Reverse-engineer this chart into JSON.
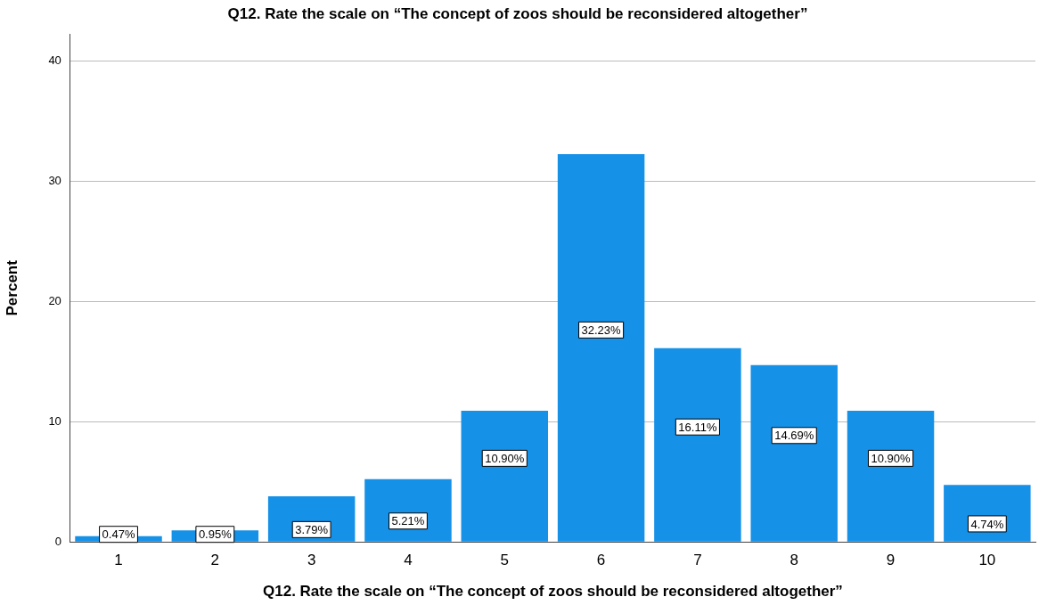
{
  "chart_data": {
    "type": "bar",
    "title": "Q12. Rate the scale on “The concept of zoos should be reconsidered altogether”",
    "xlabel": "Q12. Rate the scale on “The concept of zoos should be reconsidered altogether”",
    "ylabel": "Percent",
    "categories": [
      "1",
      "2",
      "3",
      "4",
      "5",
      "6",
      "7",
      "8",
      "9",
      "10"
    ],
    "values": [
      0.47,
      0.95,
      3.79,
      5.21,
      10.9,
      32.23,
      16.11,
      14.69,
      10.9,
      4.74
    ],
    "value_labels": [
      "0.47%",
      "0.95%",
      "3.79%",
      "5.21%",
      "10.90%",
      "32.23%",
      "16.11%",
      "14.69%",
      "10.90%",
      "4.74%"
    ],
    "color": "#1591e8",
    "ylim": [
      0,
      42.2
    ],
    "yticks": [
      0,
      10,
      20,
      30,
      40
    ],
    "grid": "y",
    "legend": false
  }
}
